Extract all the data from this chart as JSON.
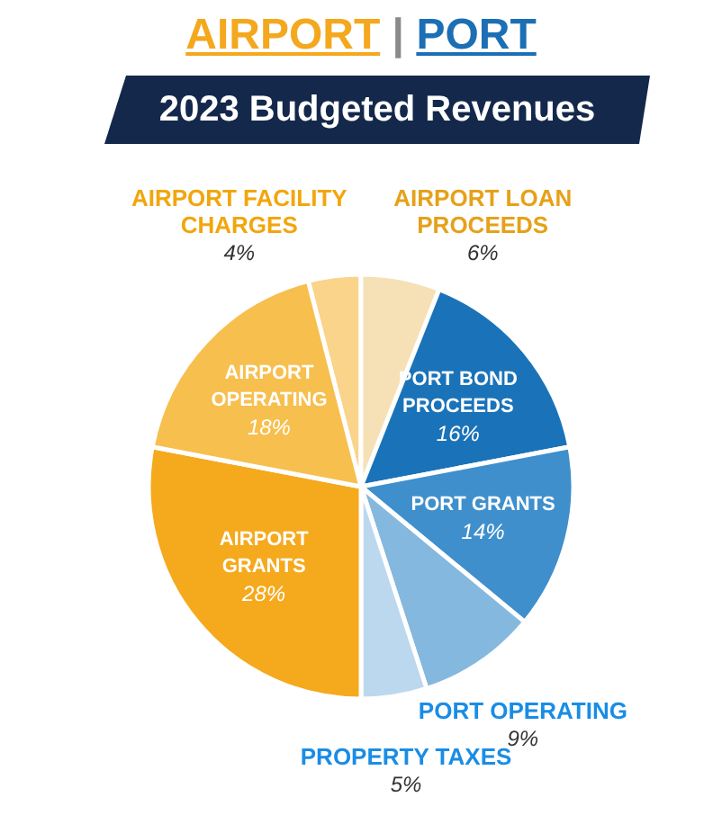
{
  "chart_data": {
    "type": "pie",
    "title": "AIRPORT | PORT",
    "subtitle": "2023 Budgeted Revenues",
    "categories": [
      "AIRPORT FACILITY CHARGES",
      "AIRPORT LOAN PROCEEDS",
      "PORT BOND PROCEEDS",
      "PORT GRANTS",
      "PORT OPERATING",
      "PROPERTY TAXES",
      "AIRPORT GRANTS",
      "AIRPORT OPERATING"
    ],
    "values": [
      4,
      6,
      16,
      14,
      9,
      5,
      28,
      18
    ],
    "colors": [
      "#f9d48a",
      "#f6e0b5",
      "#1a73b8",
      "#3f8fcc",
      "#84b8df",
      "#bcd8ee",
      "#f5a91c",
      "#f7bf4e"
    ],
    "value_labels": [
      "4%",
      "6%",
      "16%",
      "14%",
      "9%",
      "5%",
      "28%",
      "18%"
    ]
  }
}
